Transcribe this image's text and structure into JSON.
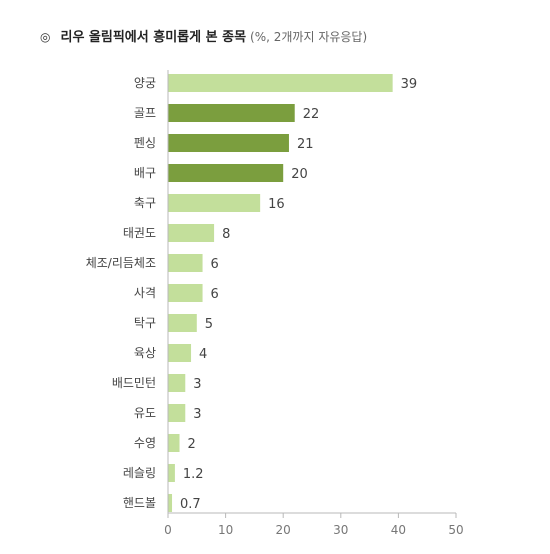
{
  "chart_data": {
    "type": "bar",
    "orientation": "horizontal",
    "title_marker": "◎",
    "title": "리우 올림픽에서 흥미롭게 본 종목",
    "subtitle": "(%, 2개까지 자유응답)",
    "categories": [
      "양궁",
      "골프",
      "펜싱",
      "배구",
      "축구",
      "태권도",
      "체조/리듬체조",
      "사격",
      "탁구",
      "육상",
      "배드민턴",
      "유도",
      "수영",
      "레슬링",
      "핸드볼"
    ],
    "values": [
      39,
      22,
      21,
      20,
      16,
      8,
      6,
      6,
      5,
      4,
      3,
      3,
      2,
      1.2,
      0.7
    ],
    "value_labels": [
      "39",
      "22",
      "21",
      "20",
      "16",
      "8",
      "6",
      "6",
      "5",
      "4",
      "3",
      "3",
      "2",
      "1.2",
      "0.7"
    ],
    "highlighted": [
      false,
      true,
      true,
      true,
      false,
      false,
      false,
      false,
      false,
      false,
      false,
      false,
      false,
      false,
      false
    ],
    "xlim": [
      0,
      50
    ],
    "xticks": [
      0,
      10,
      20,
      30,
      40,
      50
    ],
    "xtick_labels": [
      "0",
      "10",
      "20",
      "30",
      "40",
      "50"
    ],
    "grid": false,
    "legend": "none",
    "colors": {
      "bar": "#c3df9b",
      "bar_highlight": "#7b9e3e",
      "axis": "#b8b8b8"
    }
  }
}
